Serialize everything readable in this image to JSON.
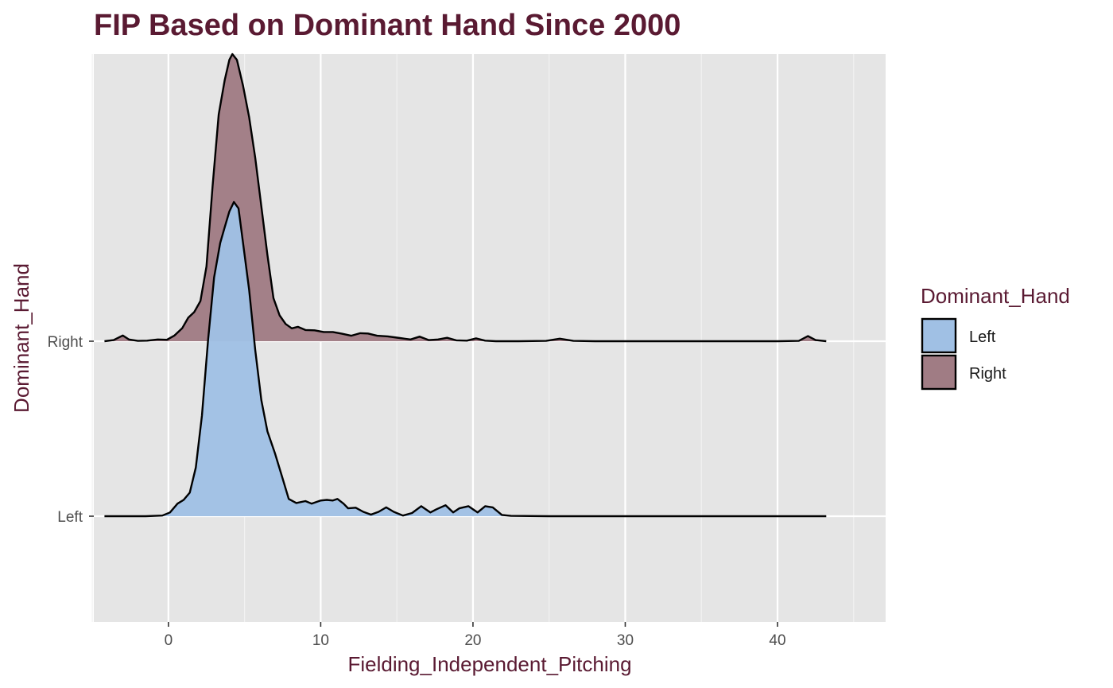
{
  "chart_data": {
    "type": "ridgeline density",
    "title": "FIP Based on Dominant Hand Since 2000",
    "xlabel": "Fielding_Independent_Pitching",
    "ylabel": "Dominant_Hand",
    "xlim": [
      -4.9,
      47.1
    ],
    "x_ticks": [
      0,
      10,
      20,
      30,
      40
    ],
    "y_categories": [
      "Left",
      "Right"
    ],
    "grid": true,
    "legend": {
      "title": "Dominant_Hand",
      "position": "right",
      "entries": [
        {
          "label": "Left",
          "color": "#a0c0e4"
        },
        {
          "label": "Right",
          "color": "#a07c84"
        }
      ]
    },
    "series": [
      {
        "name": "Left",
        "fill": "#a0c0e4",
        "points": [
          [
            -4.2,
            0
          ],
          [
            -1.5,
            0
          ],
          [
            -0.4,
            0.002
          ],
          [
            0.1,
            0.012
          ],
          [
            0.6,
            0.04
          ],
          [
            1.0,
            0.052
          ],
          [
            1.4,
            0.075
          ],
          [
            1.8,
            0.155
          ],
          [
            2.2,
            0.32
          ],
          [
            2.6,
            0.56
          ],
          [
            3.0,
            0.76
          ],
          [
            3.4,
            0.87
          ],
          [
            3.7,
            0.92
          ],
          [
            4.0,
            0.97
          ],
          [
            4.3,
            1.0
          ],
          [
            4.6,
            0.98
          ],
          [
            4.9,
            0.87
          ],
          [
            5.3,
            0.72
          ],
          [
            5.7,
            0.53
          ],
          [
            6.1,
            0.37
          ],
          [
            6.5,
            0.27
          ],
          [
            7.0,
            0.2
          ],
          [
            7.5,
            0.12
          ],
          [
            7.9,
            0.055
          ],
          [
            8.4,
            0.042
          ],
          [
            9.0,
            0.048
          ],
          [
            9.4,
            0.04
          ],
          [
            10.0,
            0.05
          ],
          [
            10.4,
            0.052
          ],
          [
            10.8,
            0.05
          ],
          [
            11.1,
            0.055
          ],
          [
            11.5,
            0.04
          ],
          [
            11.8,
            0.025
          ],
          [
            12.3,
            0.027
          ],
          [
            12.8,
            0.014
          ],
          [
            13.3,
            0.005
          ],
          [
            13.8,
            0.014
          ],
          [
            14.3,
            0.028
          ],
          [
            14.8,
            0.014
          ],
          [
            15.4,
            0.002
          ],
          [
            16.0,
            0.01
          ],
          [
            16.6,
            0.032
          ],
          [
            17.2,
            0.012
          ],
          [
            17.6,
            0.022
          ],
          [
            18.2,
            0.035
          ],
          [
            18.7,
            0.012
          ],
          [
            19.1,
            0.025
          ],
          [
            19.7,
            0.032
          ],
          [
            20.3,
            0.012
          ],
          [
            20.8,
            0.032
          ],
          [
            21.3,
            0.028
          ],
          [
            21.9,
            0.004
          ],
          [
            22.5,
            0.001
          ],
          [
            25,
            0
          ],
          [
            30,
            0
          ],
          [
            35,
            0
          ],
          [
            40,
            0
          ],
          [
            43.2,
            0
          ]
        ]
      },
      {
        "name": "Right",
        "fill": "#a07c84",
        "points": [
          [
            -4.2,
            0
          ],
          [
            -3.6,
            0.004
          ],
          [
            -3.0,
            0.02
          ],
          [
            -2.6,
            0.006
          ],
          [
            -2.0,
            0.001
          ],
          [
            -1.4,
            0.002
          ],
          [
            -0.7,
            0.006
          ],
          [
            -0.1,
            0.005
          ],
          [
            0.4,
            0.02
          ],
          [
            0.9,
            0.045
          ],
          [
            1.3,
            0.082
          ],
          [
            1.7,
            0.102
          ],
          [
            2.1,
            0.14
          ],
          [
            2.5,
            0.26
          ],
          [
            2.9,
            0.54
          ],
          [
            3.3,
            0.79
          ],
          [
            3.7,
            0.91
          ],
          [
            4.0,
            0.98
          ],
          [
            4.2,
            1.0
          ],
          [
            4.5,
            0.98
          ],
          [
            4.9,
            0.89
          ],
          [
            5.3,
            0.78
          ],
          [
            5.7,
            0.64
          ],
          [
            6.1,
            0.47
          ],
          [
            6.5,
            0.3
          ],
          [
            6.9,
            0.15
          ],
          [
            7.3,
            0.09
          ],
          [
            7.7,
            0.06
          ],
          [
            8.1,
            0.045
          ],
          [
            8.5,
            0.05
          ],
          [
            9.0,
            0.039
          ],
          [
            9.6,
            0.038
          ],
          [
            10.2,
            0.032
          ],
          [
            10.8,
            0.032
          ],
          [
            11.4,
            0.026
          ],
          [
            12.0,
            0.019
          ],
          [
            12.6,
            0.028
          ],
          [
            13.1,
            0.027
          ],
          [
            13.7,
            0.019
          ],
          [
            14.4,
            0.017
          ],
          [
            15.2,
            0.011
          ],
          [
            15.9,
            0.006
          ],
          [
            16.5,
            0.016
          ],
          [
            17.1,
            0.004
          ],
          [
            17.7,
            0.006
          ],
          [
            18.3,
            0.012
          ],
          [
            18.9,
            0.003
          ],
          [
            19.6,
            0.002
          ],
          [
            20.2,
            0.01
          ],
          [
            20.8,
            0.002
          ],
          [
            21.5,
            0
          ],
          [
            23,
            0
          ],
          [
            24.8,
            0.001
          ],
          [
            25.7,
            0.009
          ],
          [
            26.6,
            0.001
          ],
          [
            28,
            0
          ],
          [
            30,
            0
          ],
          [
            35,
            0
          ],
          [
            40,
            0
          ],
          [
            41.4,
            0.001
          ],
          [
            42.0,
            0.018
          ],
          [
            42.5,
            0.004
          ],
          [
            43.2,
            0
          ]
        ]
      }
    ]
  }
}
